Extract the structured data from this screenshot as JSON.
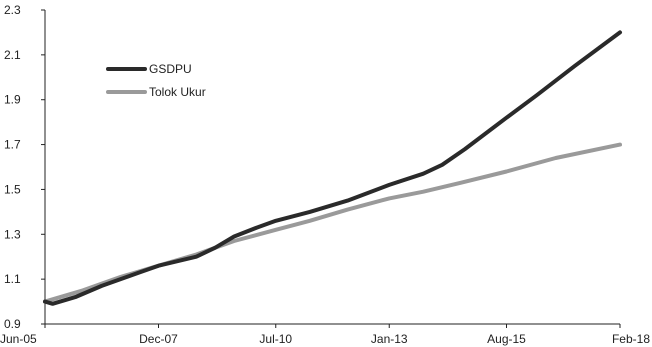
{
  "chart_data": {
    "type": "line",
    "title": "",
    "xlabel": "",
    "ylabel": "",
    "x_ticks": [
      "Jun-05",
      "Dec-07",
      "Jul-10",
      "Jan-13",
      "Aug-15",
      "Feb-18"
    ],
    "x_tick_index": [
      0,
      30,
      61,
      91,
      122,
      152
    ],
    "y_ticks": [
      "0.9",
      "1.1",
      "1.3",
      "1.5",
      "1.7",
      "1.9",
      "2.1",
      "2.3"
    ],
    "ylim": [
      0.9,
      2.3
    ],
    "grid": false,
    "legend_position": "top-left",
    "series": [
      {
        "name": "GSDPU",
        "color": "#2a2a2a",
        "points": [
          [
            0,
            1.0
          ],
          [
            2,
            0.99
          ],
          [
            8,
            1.02
          ],
          [
            15,
            1.07
          ],
          [
            25,
            1.13
          ],
          [
            30,
            1.16
          ],
          [
            40,
            1.2
          ],
          [
            45,
            1.24
          ],
          [
            50,
            1.29
          ],
          [
            56,
            1.33
          ],
          [
            61,
            1.36
          ],
          [
            70,
            1.4
          ],
          [
            80,
            1.45
          ],
          [
            91,
            1.52
          ],
          [
            100,
            1.57
          ],
          [
            105,
            1.61
          ],
          [
            111,
            1.68
          ],
          [
            122,
            1.82
          ],
          [
            130,
            1.92
          ],
          [
            140,
            2.05
          ],
          [
            152,
            2.2
          ]
        ]
      },
      {
        "name": "Tolok Ukur",
        "color": "#9a9a9a",
        "points": [
          [
            0,
            1.0
          ],
          [
            10,
            1.05
          ],
          [
            20,
            1.11
          ],
          [
            30,
            1.16
          ],
          [
            40,
            1.21
          ],
          [
            50,
            1.27
          ],
          [
            61,
            1.32
          ],
          [
            70,
            1.36
          ],
          [
            80,
            1.41
          ],
          [
            91,
            1.46
          ],
          [
            100,
            1.49
          ],
          [
            110,
            1.53
          ],
          [
            122,
            1.58
          ],
          [
            135,
            1.64
          ],
          [
            152,
            1.7
          ]
        ]
      }
    ]
  }
}
